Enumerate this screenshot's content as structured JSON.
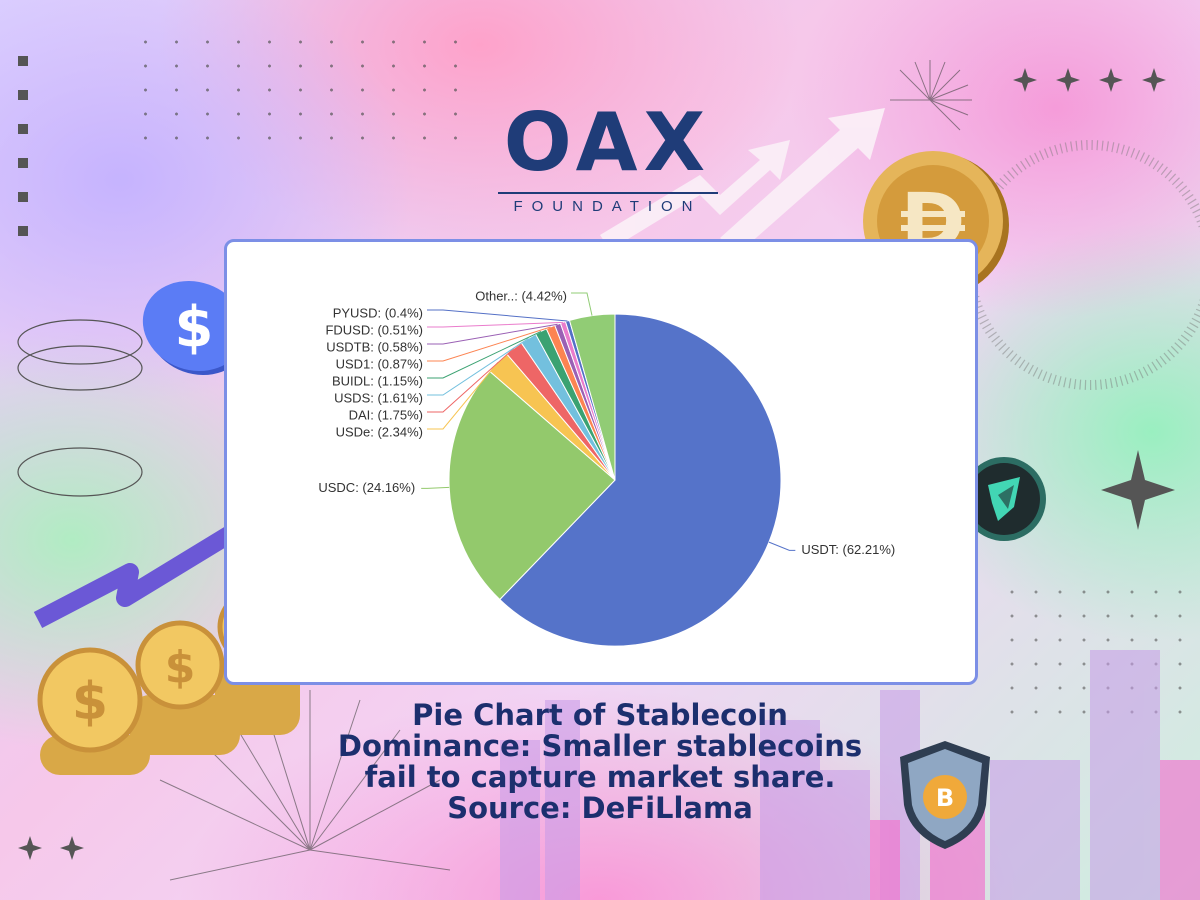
{
  "logo": {
    "word": "OAX",
    "sub": "FOUNDATION"
  },
  "caption": {
    "line1": "Pie Chart of Stablecoin",
    "line2": "Dominance: Smaller stablecoins",
    "line3": "fail to capture market share.",
    "line4": "Source: DeFiLlama"
  },
  "icons": {
    "usdc_coin": "dollar-icon",
    "dai_coin": "dai-icon",
    "teal_coin": "token-icon",
    "shield": "bitcoin-shield-icon",
    "trend_arrow": "trend-arrow-icon",
    "coin_stacks": "gold-coin-stacks-icon"
  },
  "chart_data": {
    "type": "pie",
    "slices": [
      {
        "name": "USDT",
        "value": 62.21,
        "label": "USDT: (62.21%)",
        "color": "#5573c9"
      },
      {
        "name": "USDC",
        "value": 24.16,
        "label": "USDC: (24.16%)",
        "color": "#93c96c"
      },
      {
        "name": "USDe",
        "value": 2.34,
        "label": "USDe: (2.34%)",
        "color": "#f7c452"
      },
      {
        "name": "DAI",
        "value": 1.75,
        "label": "DAI: (1.75%)",
        "color": "#ee6666"
      },
      {
        "name": "USDS",
        "value": 1.61,
        "label": "USDS: (1.61%)",
        "color": "#73c0de"
      },
      {
        "name": "BUIDL",
        "value": 1.15,
        "label": "BUIDL: (1.15%)",
        "color": "#3ba272"
      },
      {
        "name": "USD1",
        "value": 0.87,
        "label": "USD1: (0.87%)",
        "color": "#fc8452"
      },
      {
        "name": "USDTB",
        "value": 0.58,
        "label": "USDTB: (0.58%)",
        "color": "#9a60b4"
      },
      {
        "name": "FDUSD",
        "value": 0.51,
        "label": "FDUSD: (0.51%)",
        "color": "#ea7ccc"
      },
      {
        "name": "PYUSD",
        "value": 0.4,
        "label": "PYUSD: (0.4%)",
        "color": "#5470c6"
      },
      {
        "name": "Other..",
        "value": 4.42,
        "label": "Other..: (4.42%)",
        "color": "#91cc75"
      }
    ]
  }
}
